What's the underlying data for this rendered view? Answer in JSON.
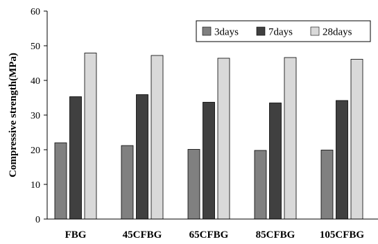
{
  "chart_data": {
    "type": "bar",
    "title": "",
    "xlabel": "",
    "ylabel": "Compressive strength(MPa)",
    "ylim": [
      0,
      60
    ],
    "yticks": [
      "0",
      "10",
      "20",
      "30",
      "40",
      "50",
      "60"
    ],
    "categories": [
      "FBG",
      "45CFBG",
      "65CFBG",
      "85CFBG",
      "105CFBG"
    ],
    "series": [
      {
        "name": "3days",
        "color": "#808080",
        "values": [
          22.0,
          21.2,
          20.1,
          19.8,
          19.9
        ]
      },
      {
        "name": "7days",
        "color": "#404040",
        "values": [
          35.3,
          35.9,
          33.7,
          33.5,
          34.2
        ]
      },
      {
        "name": "28days",
        "color": "#d9d9d9",
        "values": [
          47.9,
          47.2,
          46.4,
          46.6,
          46.1
        ]
      }
    ],
    "grid": false,
    "legend_position": "top-right"
  }
}
